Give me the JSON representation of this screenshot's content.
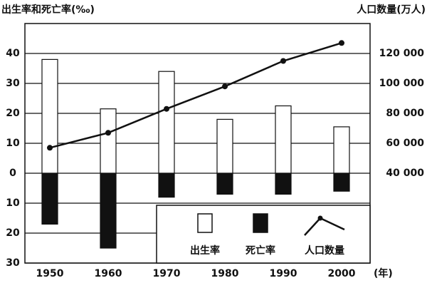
{
  "chart_data": {
    "type": "bar",
    "ylabel": "出生率和死亡率(‰)",
    "y2label": "人口数量(万人)",
    "xunit": "(年)",
    "categories": [
      "1950",
      "1960",
      "1970",
      "1980",
      "1990",
      "2000"
    ],
    "series": [
      {
        "name": "出生率",
        "color": "#ffffff",
        "values": [
          38,
          21.5,
          34,
          18,
          22.5,
          15.5
        ]
      },
      {
        "name": "死亡率",
        "color": "#111111",
        "values": [
          -17,
          -25,
          -8,
          -7,
          -7,
          -6
        ]
      },
      {
        "name": "人口数量",
        "color": "#111111",
        "type": "line",
        "axis": "y2",
        "values": [
          57000,
          67000,
          83000,
          98000,
          115000,
          127000
        ]
      }
    ],
    "ylim": [
      -30,
      50
    ],
    "yticks": [
      40,
      30,
      20,
      10,
      0,
      {
        "value": -10,
        "label": "10"
      },
      {
        "value": -20,
        "label": "20"
      },
      {
        "value": -30,
        "label": "30"
      }
    ],
    "y2lim": [
      -20000,
      140000
    ],
    "y2ticks": [
      {
        "value": 40000,
        "label": "40 000"
      },
      {
        "value": 60000,
        "label": "60 000"
      },
      {
        "value": 80000,
        "label": "80 000"
      },
      {
        "value": 100000,
        "label": "100 000"
      },
      {
        "value": 120000,
        "label": "120 000"
      }
    ],
    "grid": true,
    "legend": "lower right"
  }
}
